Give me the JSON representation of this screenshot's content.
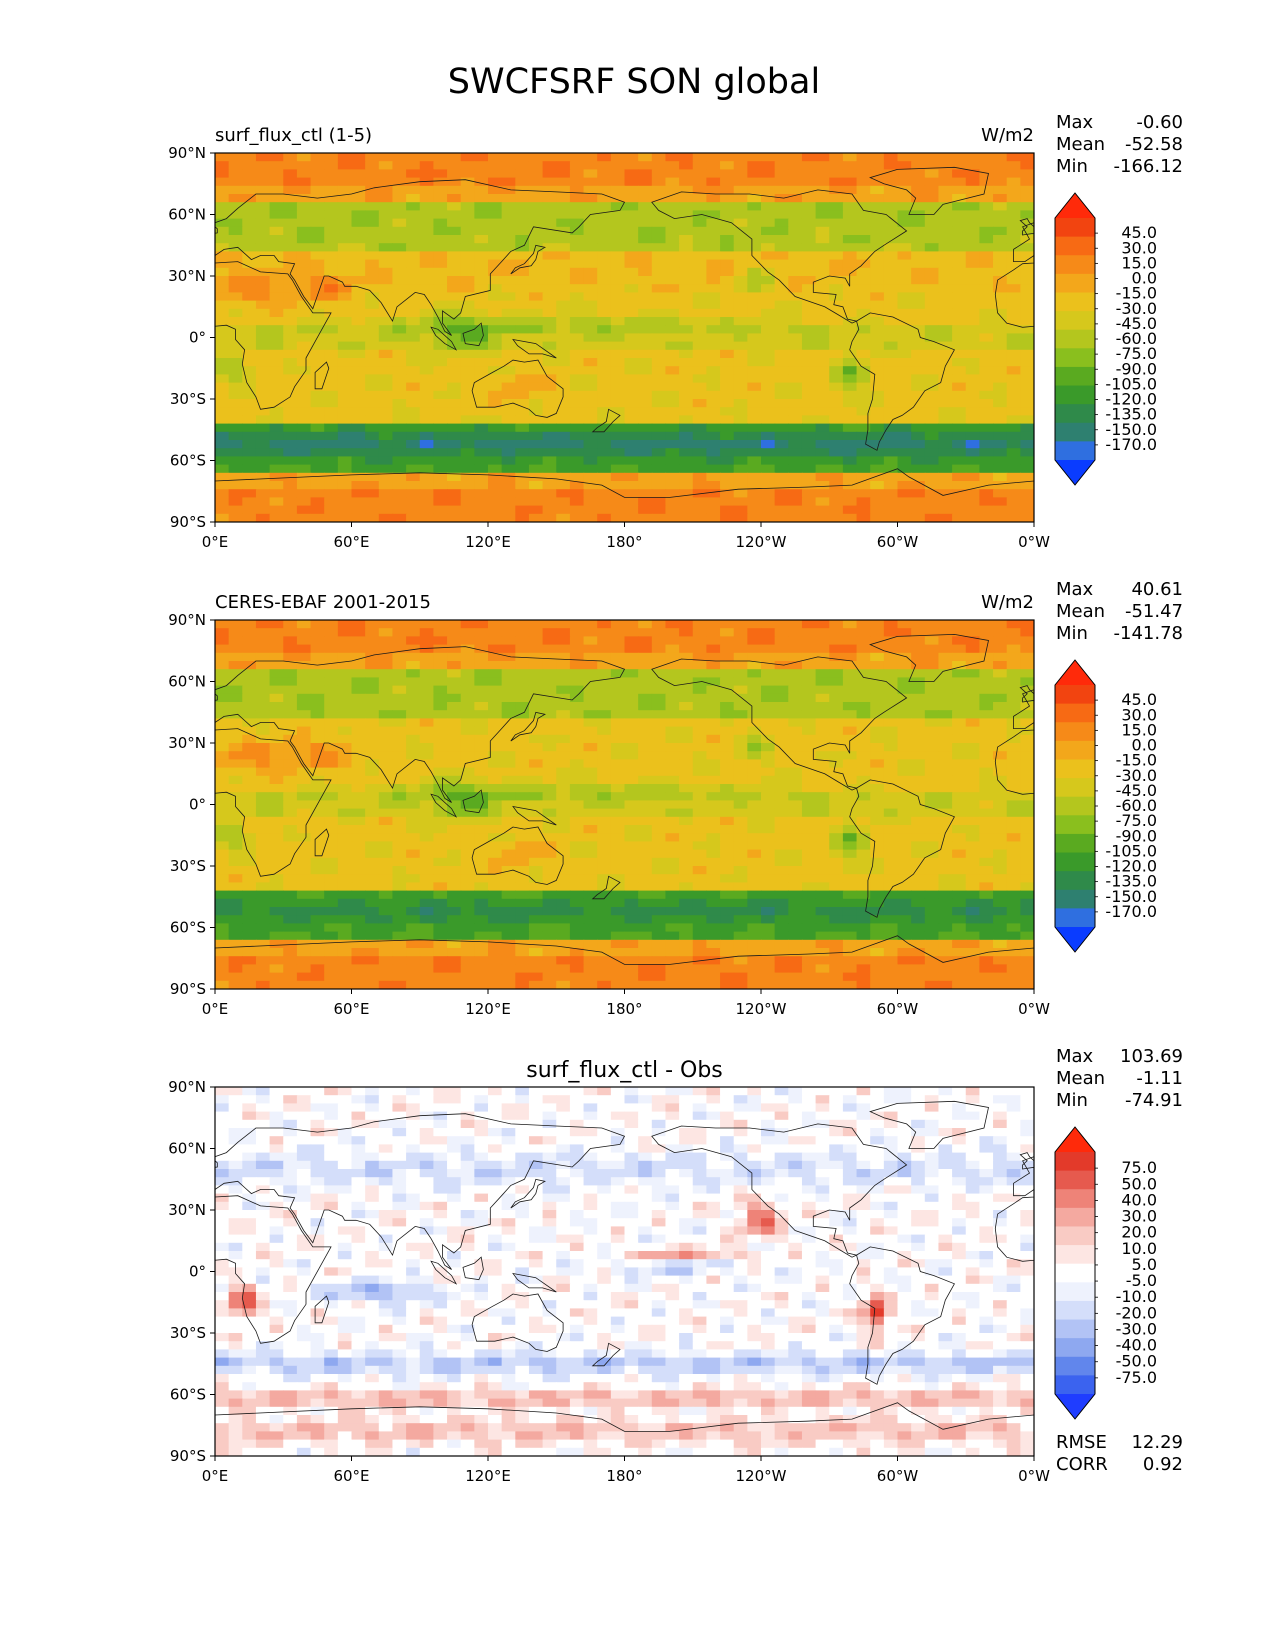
{
  "figure_title": "SWCFSRF SON global",
  "x_ticks": [
    "0°E",
    "60°E",
    "120°E",
    "180°",
    "120°W",
    "60°W",
    "0°W"
  ],
  "y_ticks": [
    "90°N",
    "60°N",
    "30°N",
    "0°",
    "30°S",
    "60°S",
    "90°S"
  ],
  "colors": {
    "field_palette": [
      "#0a3cff",
      "#2f6fe0",
      "#2e8070",
      "#2f8a4a",
      "#3a9a2a",
      "#5aaa20",
      "#8abf1e",
      "#b4c61e",
      "#d6c81c",
      "#ebc11c",
      "#f3a71b",
      "#f68a18",
      "#f76a14",
      "#f24410",
      "#ff2a0a"
    ],
    "diff_palette": [
      "#1f3dff",
      "#3b63ef",
      "#6186ec",
      "#8ea8f0",
      "#b2c3f5",
      "#d4defa",
      "#eef2fd",
      "#ffffff",
      "#fde6e3",
      "#f9cbc4",
      "#f4a9a0",
      "#ee8378",
      "#e65a4e",
      "#e33a2a",
      "#ff2a0a"
    ],
    "coastline": "#1a1a1a"
  },
  "chart_data": [
    {
      "type": "heatmap",
      "left_title": "surf_flux_ctl (1-5)",
      "units": "W/m2",
      "stats": [
        {
          "label": "Max",
          "value": "-0.60"
        },
        {
          "label": "Mean",
          "value": "-52.58"
        },
        {
          "label": "Min",
          "value": "-166.12"
        }
      ],
      "xlim": [
        0,
        360
      ],
      "ylim": [
        -90,
        90
      ],
      "colorbar": {
        "levels": [
          "45.0",
          "30.0",
          "15.0",
          "0.0",
          "-15.0",
          "-30.0",
          "-45.0",
          "-60.0",
          "-75.0",
          "-90.0",
          "-105.0",
          "-120.0",
          "-135.0",
          "-150.0",
          "-170.0"
        ],
        "extend": "both"
      }
    },
    {
      "type": "heatmap",
      "left_title": "CERES-EBAF 2001-2015",
      "units": "W/m2",
      "stats": [
        {
          "label": "Max",
          "value": "40.61"
        },
        {
          "label": "Mean",
          "value": "-51.47"
        },
        {
          "label": "Min",
          "value": "-141.78"
        }
      ],
      "xlim": [
        0,
        360
      ],
      "ylim": [
        -90,
        90
      ],
      "colorbar": {
        "levels": [
          "45.0",
          "30.0",
          "15.0",
          "0.0",
          "-15.0",
          "-30.0",
          "-45.0",
          "-60.0",
          "-75.0",
          "-90.0",
          "-105.0",
          "-120.0",
          "-135.0",
          "-150.0",
          "-170.0"
        ],
        "extend": "both"
      }
    },
    {
      "type": "heatmap",
      "center_title": "surf_flux_ctl - Obs",
      "stats": [
        {
          "label": "Max",
          "value": "103.69"
        },
        {
          "label": "Mean",
          "value": "-1.11"
        },
        {
          "label": "Min",
          "value": "-74.91"
        }
      ],
      "xlim": [
        0,
        360
      ],
      "ylim": [
        -90,
        90
      ],
      "colorbar": {
        "levels": [
          "75.0",
          "50.0",
          "40.0",
          "30.0",
          "20.0",
          "10.0",
          "5.0",
          "-5.0",
          "-10.0",
          "-20.0",
          "-30.0",
          "-40.0",
          "-50.0",
          "-75.0"
        ],
        "extend": "both"
      },
      "metrics": [
        {
          "label": "RMSE",
          "value": "12.29"
        },
        {
          "label": "CORR",
          "value": "0.92"
        }
      ]
    }
  ]
}
